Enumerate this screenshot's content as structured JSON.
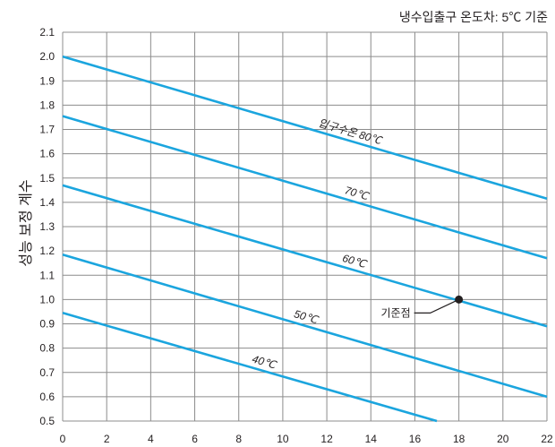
{
  "chart_data": {
    "type": "line",
    "title": "",
    "note": "냉수입출구 온도차: 5℃ 기준",
    "xlabel": "",
    "ylabel": "성능 보정 계수",
    "xlim": [
      0,
      22
    ],
    "ylim": [
      0.5,
      2.1
    ],
    "xticks": [
      0,
      2,
      4,
      6,
      8,
      10,
      12,
      14,
      16,
      18,
      20,
      22
    ],
    "yticks": [
      0.5,
      0.6,
      0.7,
      0.8,
      0.9,
      1.0,
      1.1,
      1.2,
      1.3,
      1.4,
      1.5,
      1.6,
      1.7,
      1.8,
      1.9,
      2.0,
      2.1
    ],
    "grid": true,
    "line_color": "#1ba5de",
    "series": [
      {
        "name": "입구수온 80℃",
        "label_at": 13,
        "points": [
          [
            0,
            2.0
          ],
          [
            22,
            1.415
          ]
        ]
      },
      {
        "name": "70℃",
        "label_at": 13.3,
        "points": [
          [
            0,
            1.755
          ],
          [
            22,
            1.17
          ]
        ]
      },
      {
        "name": "60℃",
        "label_at": 13.2,
        "points": [
          [
            0,
            1.47
          ],
          [
            22,
            0.89
          ]
        ]
      },
      {
        "name": "50℃",
        "label_at": 11,
        "points": [
          [
            0,
            1.185
          ],
          [
            22,
            0.6
          ]
        ]
      },
      {
        "name": "40℃",
        "label_at": 9.1,
        "points": [
          [
            0,
            0.945
          ],
          [
            17,
            0.5
          ]
        ]
      }
    ],
    "reference_point": {
      "label": "기준점",
      "x": 18,
      "y": 1.0
    }
  }
}
